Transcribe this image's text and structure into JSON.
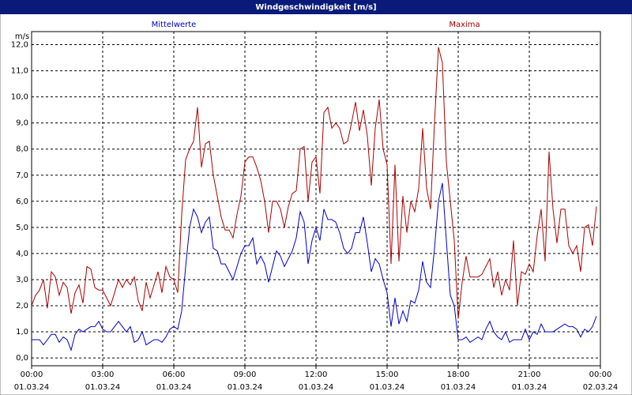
{
  "chart_data": {
    "type": "line",
    "title": "Windgeschwindigkeit [m/s]",
    "ylabel": "m/s",
    "xlim": [
      0,
      1440
    ],
    "ylim": [
      -0.3,
      12.5
    ],
    "xticks": [
      {
        "value": 0,
        "label": "00:00",
        "date": "01.03.24"
      },
      {
        "value": 180,
        "label": "03:00",
        "date": "01.03.24"
      },
      {
        "value": 360,
        "label": "06:00",
        "date": "01.03.24"
      },
      {
        "value": 540,
        "label": "09:00",
        "date": "01.03.24"
      },
      {
        "value": 720,
        "label": "12:00",
        "date": "01.03.24"
      },
      {
        "value": 900,
        "label": "15:00",
        "date": "01.03.24"
      },
      {
        "value": 1080,
        "label": "18:00",
        "date": "01.03.24"
      },
      {
        "value": 1260,
        "label": "21:00",
        "date": "01.03.24"
      },
      {
        "value": 1440,
        "label": "00:00",
        "date": "02.03.24"
      }
    ],
    "yticks": [
      {
        "value": 0,
        "label": "0,0"
      },
      {
        "value": 1,
        "label": "1,0"
      },
      {
        "value": 2,
        "label": "2,0"
      },
      {
        "value": 3,
        "label": "3,0"
      },
      {
        "value": 4,
        "label": "4,0"
      },
      {
        "value": 5,
        "label": "5,0"
      },
      {
        "value": 6,
        "label": "6,0"
      },
      {
        "value": 7,
        "label": "7,0"
      },
      {
        "value": 8,
        "label": "8,0"
      },
      {
        "value": 9,
        "label": "9,0"
      },
      {
        "value": 10,
        "label": "10,0"
      },
      {
        "value": 11,
        "label": "11,0"
      },
      {
        "value": 12,
        "label": "12,0"
      }
    ],
    "grid": true,
    "x": [
      0,
      10,
      20,
      30,
      40,
      50,
      60,
      70,
      80,
      90,
      100,
      110,
      120,
      130,
      140,
      150,
      160,
      170,
      180,
      190,
      200,
      210,
      220,
      230,
      240,
      250,
      260,
      270,
      280,
      290,
      300,
      310,
      320,
      330,
      340,
      350,
      360,
      370,
      380,
      390,
      400,
      410,
      420,
      430,
      440,
      450,
      460,
      470,
      480,
      490,
      500,
      510,
      520,
      530,
      540,
      550,
      560,
      570,
      580,
      590,
      600,
      610,
      620,
      630,
      640,
      650,
      660,
      670,
      680,
      690,
      700,
      710,
      720,
      730,
      740,
      750,
      760,
      770,
      780,
      790,
      800,
      810,
      820,
      830,
      840,
      850,
      860,
      870,
      880,
      890,
      900,
      910,
      920,
      930,
      940,
      950,
      960,
      970,
      980,
      990,
      1000,
      1010,
      1020,
      1030,
      1040,
      1050,
      1060,
      1070,
      1080,
      1090,
      1100,
      1110,
      1120,
      1130,
      1140,
      1150,
      1160,
      1170,
      1180,
      1190,
      1200,
      1210,
      1220,
      1230,
      1240,
      1250,
      1260,
      1270,
      1280,
      1290,
      1300,
      1310,
      1320,
      1330,
      1340,
      1350,
      1360,
      1370,
      1380,
      1390,
      1400,
      1410,
      1420,
      1430
    ],
    "series": [
      {
        "name": "Mittelwerte",
        "color": "#0000cc",
        "values": [
          0.7,
          0.7,
          0.7,
          0.5,
          0.7,
          0.9,
          0.9,
          0.6,
          0.8,
          0.7,
          0.3,
          0.9,
          1.1,
          1.0,
          1.1,
          1.2,
          1.2,
          1.4,
          1.1,
          1.0,
          1.0,
          1.2,
          1.4,
          1.2,
          1.0,
          1.2,
          0.6,
          0.7,
          1.0,
          0.5,
          0.6,
          0.7,
          0.7,
          0.6,
          0.8,
          1.1,
          1.2,
          1.1,
          1.8,
          3.5,
          5.0,
          5.7,
          5.4,
          4.8,
          5.2,
          5.4,
          4.2,
          4.1,
          3.6,
          3.6,
          3.3,
          3.0,
          3.5,
          4.0,
          4.3,
          4.3,
          4.6,
          3.6,
          3.9,
          3.6,
          2.9,
          3.5,
          4.1,
          3.9,
          3.5,
          3.8,
          4.1,
          4.6,
          5.6,
          5.2,
          3.6,
          4.5,
          5.0,
          4.5,
          5.7,
          5.3,
          5.3,
          5.2,
          4.8,
          4.2,
          4.0,
          4.2,
          4.8,
          4.8,
          5.4,
          4.4,
          3.3,
          3.8,
          3.6,
          3.0,
          2.5,
          1.2,
          2.3,
          1.3,
          1.8,
          1.4,
          2.2,
          2.1,
          2.6,
          3.7,
          2.9,
          2.7,
          4.2,
          6.0,
          6.7,
          4.5,
          2.4,
          2.0,
          0.7,
          0.7,
          0.8,
          0.6,
          0.7,
          0.8,
          0.7,
          1.1,
          1.4,
          1.0,
          0.8,
          0.7,
          1.0,
          0.6,
          0.7,
          0.7,
          0.7,
          1.1,
          0.7,
          1.0,
          0.9,
          1.3,
          1.0,
          1.0,
          1.0,
          1.1,
          1.2,
          1.3,
          1.2,
          1.2,
          1.1,
          0.8,
          1.1,
          1.0,
          1.2,
          1.6
        ]
      },
      {
        "name": "Maxima",
        "color": "#aa0000",
        "values": [
          2.0,
          2.4,
          2.6,
          3.0,
          1.9,
          3.3,
          3.1,
          2.4,
          2.9,
          2.7,
          1.7,
          2.5,
          2.8,
          2.1,
          3.5,
          3.4,
          2.7,
          2.6,
          2.6,
          2.3,
          2.0,
          2.5,
          3.0,
          2.7,
          3.0,
          2.8,
          3.1,
          2.2,
          1.8,
          2.9,
          2.3,
          2.8,
          3.3,
          2.5,
          3.5,
          3.1,
          3.0,
          2.5,
          5.5,
          7.6,
          8.0,
          8.3,
          9.6,
          7.3,
          8.2,
          8.3,
          7.0,
          6.2,
          5.4,
          4.9,
          4.9,
          4.6,
          5.5,
          6.2,
          7.5,
          7.7,
          7.7,
          7.3,
          6.8,
          6.0,
          4.8,
          6.0,
          6.0,
          5.7,
          5.0,
          5.8,
          6.3,
          6.4,
          8.0,
          8.1,
          6.0,
          7.5,
          7.7,
          6.3,
          9.4,
          9.6,
          8.8,
          9.0,
          8.8,
          8.2,
          8.3,
          9.0,
          9.8,
          8.7,
          9.5,
          8.5,
          6.6,
          8.8,
          9.9,
          8.0,
          7.4,
          3.6,
          7.4,
          3.7,
          6.2,
          4.8,
          6.0,
          5.6,
          6.5,
          8.8,
          6.5,
          5.7,
          9.0,
          11.9,
          11.3,
          7.5,
          6.0,
          4.5,
          1.5,
          2.9,
          3.9,
          3.1,
          3.1,
          3.1,
          3.2,
          3.5,
          3.8,
          2.7,
          3.3,
          2.4,
          3.0,
          2.6,
          4.5,
          2.0,
          3.3,
          3.2,
          3.6,
          3.3,
          4.7,
          5.7,
          3.7,
          7.9,
          5.7,
          4.4,
          5.7,
          5.7,
          4.3,
          4.0,
          4.3,
          3.3,
          5.0,
          5.1,
          4.3,
          5.8
        ]
      }
    ]
  }
}
